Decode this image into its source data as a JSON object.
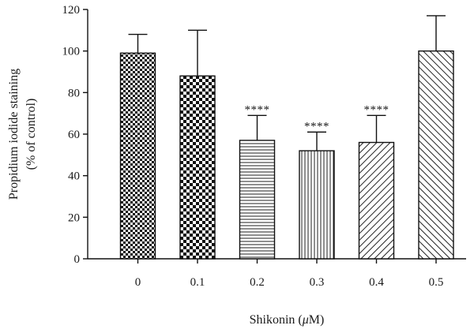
{
  "chart_data": {
    "type": "bar",
    "title": "",
    "xlabel": "Shikonin (μM)",
    "xlabel_parts": {
      "prefix": "Shikonin (",
      "unit_italic": "μ",
      "suffix": "M)"
    },
    "ylabel_lines": [
      "Propidium iodide staining",
      "(% of control)"
    ],
    "ylim": [
      0,
      120
    ],
    "yticks": [
      "0",
      "20",
      "40",
      "60",
      "80",
      "100",
      "120"
    ],
    "grid": false,
    "legend": "none",
    "categories": [
      "0",
      "0.1",
      "0.2",
      "0.3",
      "0.4",
      "0.5"
    ],
    "values": [
      99,
      88,
      57,
      52,
      56,
      100
    ],
    "error_upper": [
      108,
      110,
      69,
      61,
      69,
      117
    ],
    "annotations": [
      "",
      "",
      "****",
      "****",
      "****",
      ""
    ],
    "fill_patterns": [
      "checker-fine",
      "checker-coarse",
      "horizontal-lines",
      "vertical-lines",
      "diagonal-right",
      "diagonal-left"
    ]
  }
}
